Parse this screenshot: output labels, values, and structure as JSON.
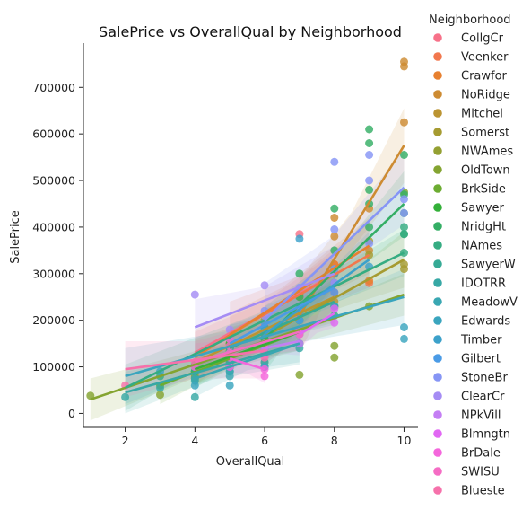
{
  "chart_data": {
    "type": "scatter",
    "title": "SalePrice vs OverallQual by Neighborhood",
    "xlabel": "OverallQual",
    "ylabel": "SalePrice",
    "xlim": [
      0.8,
      10.4
    ],
    "ylim": [
      -30000,
      795000
    ],
    "xticks": [
      2,
      4,
      6,
      8,
      10
    ],
    "yticks": [
      0,
      100000,
      200000,
      300000,
      400000,
      500000,
      600000,
      700000
    ],
    "grid": false,
    "legend": {
      "title": "Neighborhood",
      "placement": "right"
    },
    "series": [
      {
        "name": "CollgCr",
        "color": "#f77189",
        "points": [
          [
            5,
            150000
          ],
          [
            6,
            165000
          ],
          [
            6,
            190000
          ],
          [
            7,
            210000
          ],
          [
            7,
            230000
          ],
          [
            7,
            385000
          ],
          [
            8,
            260000
          ],
          [
            8,
            300000
          ]
        ],
        "fit": [
          [
            4,
            130000
          ],
          [
            8,
            300000
          ]
        ],
        "ci": [
          25000,
          45000
        ]
      },
      {
        "name": "Veenker",
        "color": "#f2774d",
        "points": [
          [
            6,
            180000
          ],
          [
            7,
            230000
          ],
          [
            8,
            300000
          ],
          [
            9,
            280000
          ],
          [
            8,
            320000
          ]
        ],
        "fit": [
          [
            5,
            170000
          ],
          [
            9,
            340000
          ]
        ],
        "ci": [
          40000,
          70000
        ]
      },
      {
        "name": "Crawfor",
        "color": "#e7802f",
        "points": [
          [
            5,
            150000
          ],
          [
            6,
            180000
          ],
          [
            7,
            260000
          ],
          [
            8,
            320000
          ],
          [
            9,
            285000
          ],
          [
            7,
            220000
          ]
        ],
        "fit": [
          [
            4,
            120000
          ],
          [
            9,
            360000
          ]
        ],
        "ci": [
          30000,
          60000
        ]
      },
      {
        "name": "NoRidge",
        "color": "#cd8b32",
        "points": [
          [
            7,
            250000
          ],
          [
            8,
            300000
          ],
          [
            8,
            380000
          ],
          [
            9,
            350000
          ],
          [
            10,
            745000
          ],
          [
            10,
            755000
          ],
          [
            10,
            625000
          ],
          [
            8,
            420000
          ],
          [
            9,
            440000
          ]
        ],
        "fit": [
          [
            7,
            210000
          ],
          [
            10,
            575000
          ]
        ],
        "ci": [
          40000,
          80000
        ]
      },
      {
        "name": "Mitchel",
        "color": "#bb9432",
        "points": [
          [
            5,
            130000
          ],
          [
            6,
            160000
          ],
          [
            7,
            200000
          ],
          [
            8,
            240000
          ],
          [
            5,
            100000
          ]
        ],
        "fit": [
          [
            4,
            110000
          ],
          [
            8,
            250000
          ]
        ],
        "ci": [
          25000,
          50000
        ]
      },
      {
        "name": "Somerst",
        "color": "#a69b31",
        "points": [
          [
            6,
            180000
          ],
          [
            7,
            230000
          ],
          [
            7,
            255000
          ],
          [
            8,
            280000
          ],
          [
            8,
            300000
          ],
          [
            9,
            340000
          ],
          [
            10,
            320000
          ],
          [
            10,
            310000
          ],
          [
            9,
            370000
          ]
        ],
        "fit": [
          [
            6,
            165000
          ],
          [
            10,
            330000
          ]
        ],
        "ci": [
          25000,
          60000
        ]
      },
      {
        "name": "NWAmes",
        "color": "#94a032",
        "points": [
          [
            5,
            150000
          ],
          [
            6,
            175000
          ],
          [
            6,
            200000
          ],
          [
            7,
            215000
          ],
          [
            7,
            180000
          ],
          [
            8,
            230000
          ]
        ],
        "fit": [
          [
            5,
            140000
          ],
          [
            8,
            240000
          ]
        ],
        "ci": [
          25000,
          45000
        ]
      },
      {
        "name": "OldTown",
        "color": "#84a431",
        "points": [
          [
            1,
            38000
          ],
          [
            3,
            40000
          ],
          [
            4,
            80000
          ],
          [
            4,
            90000
          ],
          [
            5,
            100000
          ],
          [
            5,
            120000
          ],
          [
            6,
            140000
          ],
          [
            6,
            110000
          ],
          [
            7,
            83000
          ],
          [
            7,
            180000
          ],
          [
            8,
            145000
          ],
          [
            8,
            120000
          ],
          [
            9,
            230000
          ],
          [
            10,
            475000
          ]
        ],
        "fit": [
          [
            1,
            30000
          ],
          [
            10,
            255000
          ]
        ],
        "ci": [
          20000,
          45000
        ]
      },
      {
        "name": "BrkSide",
        "color": "#6cac31",
        "points": [
          [
            3,
            60000
          ],
          [
            4,
            75000
          ],
          [
            4,
            90000
          ],
          [
            5,
            100000
          ],
          [
            5,
            110000
          ],
          [
            6,
            130000
          ],
          [
            7,
            150000
          ],
          [
            7,
            200000
          ]
        ],
        "fit": [
          [
            3,
            60000
          ],
          [
            7,
            175000
          ]
        ],
        "ci": [
          20000,
          40000
        ]
      },
      {
        "name": "Sawyer",
        "color": "#33b039",
        "points": [
          [
            4,
            90000
          ],
          [
            5,
            120000
          ],
          [
            5,
            135000
          ],
          [
            6,
            145000
          ],
          [
            6,
            160000
          ],
          [
            7,
            180000
          ],
          [
            5,
            150000
          ]
        ],
        "fit": [
          [
            4,
            95000
          ],
          [
            7,
            175000
          ]
        ],
        "ci": [
          20000,
          40000
        ]
      },
      {
        "name": "NridgHt",
        "color": "#34ae65",
        "points": [
          [
            7,
            250000
          ],
          [
            7,
            300000
          ],
          [
            8,
            310000
          ],
          [
            8,
            350000
          ],
          [
            8,
            440000
          ],
          [
            9,
            400000
          ],
          [
            9,
            450000
          ],
          [
            9,
            580000
          ],
          [
            9,
            610000
          ],
          [
            10,
            470000
          ],
          [
            10,
            385000
          ],
          [
            10,
            555000
          ],
          [
            10,
            430000
          ],
          [
            9,
            480000
          ]
        ],
        "fit": [
          [
            6,
            160000
          ],
          [
            10,
            450000
          ]
        ],
        "ci": [
          30000,
          70000
        ]
      },
      {
        "name": "NAmes",
        "color": "#35ac82",
        "points": [
          [
            3,
            80000
          ],
          [
            4,
            90000
          ],
          [
            4,
            105000
          ],
          [
            5,
            120000
          ],
          [
            5,
            130000
          ],
          [
            5,
            140000
          ],
          [
            6,
            145000
          ],
          [
            6,
            160000
          ],
          [
            7,
            175000
          ],
          [
            8,
            210000
          ],
          [
            10,
            345000
          ],
          [
            10,
            385000
          ],
          [
            10,
            400000
          ]
        ],
        "fit": [
          [
            2,
            55000
          ],
          [
            10,
            345000
          ]
        ],
        "ci": [
          20000,
          50000
        ]
      },
      {
        "name": "SawyerW",
        "color": "#36aa95",
        "points": [
          [
            5,
            140000
          ],
          [
            6,
            170000
          ],
          [
            7,
            200000
          ],
          [
            8,
            230000
          ],
          [
            6,
            185000
          ]
        ],
        "fit": [
          [
            5,
            140000
          ],
          [
            8,
            240000
          ]
        ],
        "ci": [
          25000,
          50000
        ]
      },
      {
        "name": "IDOTRR",
        "color": "#37a8a5",
        "points": [
          [
            2,
            35000
          ],
          [
            3,
            55000
          ],
          [
            4,
            35000
          ],
          [
            4,
            70000
          ],
          [
            5,
            90000
          ],
          [
            5,
            110000
          ],
          [
            6,
            100000
          ],
          [
            6,
            130000
          ],
          [
            7,
            140000
          ]
        ],
        "fit": [
          [
            2,
            45000
          ],
          [
            7,
            150000
          ]
        ],
        "ci": [
          25000,
          45000
        ]
      },
      {
        "name": "MeadowV",
        "color": "#39a7b2",
        "points": [
          [
            4,
            75000
          ],
          [
            5,
            80000
          ],
          [
            5,
            90000
          ],
          [
            6,
            110000
          ],
          [
            6,
            140000
          ],
          [
            7,
            150000
          ]
        ],
        "fit": [
          [
            4,
            75000
          ],
          [
            7,
            150000
          ]
        ],
        "ci": [
          20000,
          40000
        ]
      },
      {
        "name": "Edwards",
        "color": "#3aa5be",
        "points": [
          [
            3,
            90000
          ],
          [
            4,
            100000
          ],
          [
            4,
            60000
          ],
          [
            5,
            100000
          ],
          [
            5,
            60000
          ],
          [
            5,
            130000
          ],
          [
            6,
            100000
          ],
          [
            6,
            150000
          ],
          [
            7,
            170000
          ],
          [
            8,
            230000
          ],
          [
            10,
            160000
          ],
          [
            10,
            185000
          ]
        ],
        "fit": [
          [
            2,
            80000
          ],
          [
            10,
            250000
          ]
        ],
        "ci": [
          25000,
          60000
        ]
      },
      {
        "name": "Timber",
        "color": "#3ca1ca",
        "points": [
          [
            6,
            180000
          ],
          [
            7,
            230000
          ],
          [
            7,
            375000
          ],
          [
            8,
            300000
          ],
          [
            9,
            315000
          ]
        ],
        "fit": [
          [
            6,
            170000
          ],
          [
            9,
            330000
          ]
        ],
        "ci": [
          30000,
          60000
        ]
      },
      {
        "name": "Gilbert",
        "color": "#4a9be6",
        "points": [
          [
            5,
            160000
          ],
          [
            6,
            175000
          ],
          [
            6,
            195000
          ],
          [
            7,
            200000
          ],
          [
            7,
            215000
          ],
          [
            8,
            260000
          ],
          [
            8,
            280000
          ]
        ],
        "fit": [
          [
            5,
            150000
          ],
          [
            8,
            270000
          ]
        ],
        "ci": [
          20000,
          40000
        ]
      },
      {
        "name": "StoneBr",
        "color": "#8695f5",
        "points": [
          [
            6,
            220000
          ],
          [
            7,
            270000
          ],
          [
            8,
            310000
          ],
          [
            8,
            395000
          ],
          [
            8,
            540000
          ],
          [
            9,
            365000
          ],
          [
            9,
            500000
          ],
          [
            9,
            555000
          ],
          [
            10,
            430000
          ],
          [
            10,
            460000
          ]
        ],
        "fit": [
          [
            6,
            200000
          ],
          [
            10,
            485000
          ]
        ],
        "ci": [
          40000,
          80000
        ]
      },
      {
        "name": "ClearCr",
        "color": "#a58cf4",
        "points": [
          [
            4,
            255000
          ],
          [
            5,
            180000
          ],
          [
            6,
            210000
          ],
          [
            6,
            275000
          ],
          [
            7,
            230000
          ],
          [
            8,
            280000
          ]
        ],
        "fit": [
          [
            4,
            185000
          ],
          [
            8,
            300000
          ]
        ],
        "ci": [
          30000,
          60000
        ]
      },
      {
        "name": "NPkVill",
        "color": "#c47ef4",
        "points": [
          [
            6,
            145000
          ],
          [
            7,
            150000
          ],
          [
            6,
            140000
          ]
        ],
        "fit": [
          [
            6,
            140000
          ],
          [
            7,
            155000
          ]
        ],
        "ci": [
          20000,
          30000
        ]
      },
      {
        "name": "Blmngtn",
        "color": "#e167f3",
        "points": [
          [
            7,
            170000
          ],
          [
            8,
            195000
          ],
          [
            7,
            180000
          ],
          [
            8,
            225000
          ]
        ],
        "fit": [
          [
            7,
            170000
          ],
          [
            8,
            215000
          ]
        ],
        "ci": [
          20000,
          30000
        ]
      },
      {
        "name": "BrDale",
        "color": "#f466dc",
        "points": [
          [
            5,
            100000
          ],
          [
            5,
            120000
          ],
          [
            6,
            125000
          ],
          [
            6,
            95000
          ],
          [
            6,
            80000
          ]
        ],
        "fit": [
          [
            5,
            118000
          ],
          [
            6,
            95000
          ]
        ],
        "ci": [
          20000,
          30000
        ]
      },
      {
        "name": "SWISU",
        "color": "#f56cc4",
        "points": [
          [
            4,
            100000
          ],
          [
            5,
            130000
          ],
          [
            5,
            145000
          ],
          [
            6,
            150000
          ],
          [
            7,
            170000
          ],
          [
            5,
            160000
          ]
        ],
        "fit": [
          [
            4,
            110000
          ],
          [
            7,
            175000
          ]
        ],
        "ci": [
          20000,
          40000
        ]
      },
      {
        "name": "Blueste",
        "color": "#f671ab",
        "points": [
          [
            2,
            60000
          ],
          [
            6,
            130000
          ],
          [
            6,
            120000
          ],
          [
            4,
            110000
          ]
        ],
        "fit": [
          [
            2,
            95000
          ],
          [
            6,
            135000
          ]
        ],
        "ci": [
          40000,
          60000
        ]
      }
    ]
  }
}
